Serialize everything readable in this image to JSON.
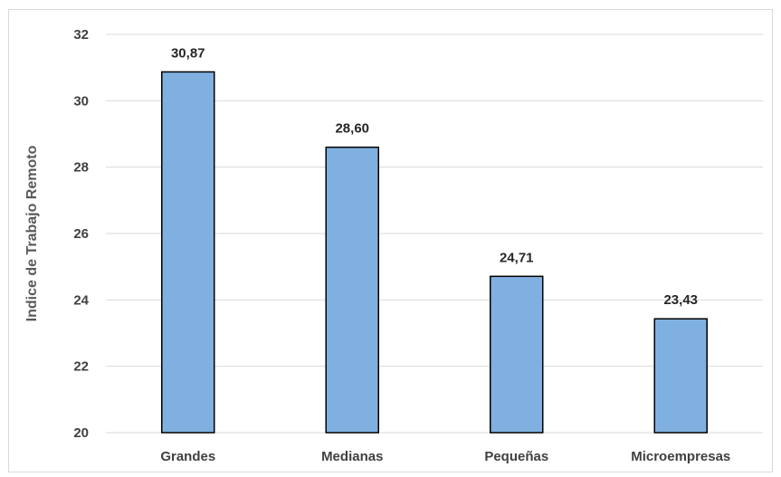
{
  "chart_data": {
    "type": "bar",
    "title": "",
    "xlabel": "",
    "ylabel": "Indice de Trabajo  Remoto",
    "categories": [
      "Grandes",
      "Medianas",
      "Pequeñas",
      "Microempresas"
    ],
    "values": [
      30.87,
      28.6,
      24.71,
      23.43
    ],
    "value_labels": [
      "30,87",
      "28,60",
      "24,71",
      "23,43"
    ],
    "ylim": [
      20,
      32
    ],
    "yticks": [
      20,
      22,
      24,
      26,
      28,
      30,
      32
    ],
    "grid": true,
    "legend": "none",
    "bar_color": "#7fb0e0",
    "bar_edge_color": "#000000",
    "grid_color": "#d9d9d9"
  }
}
